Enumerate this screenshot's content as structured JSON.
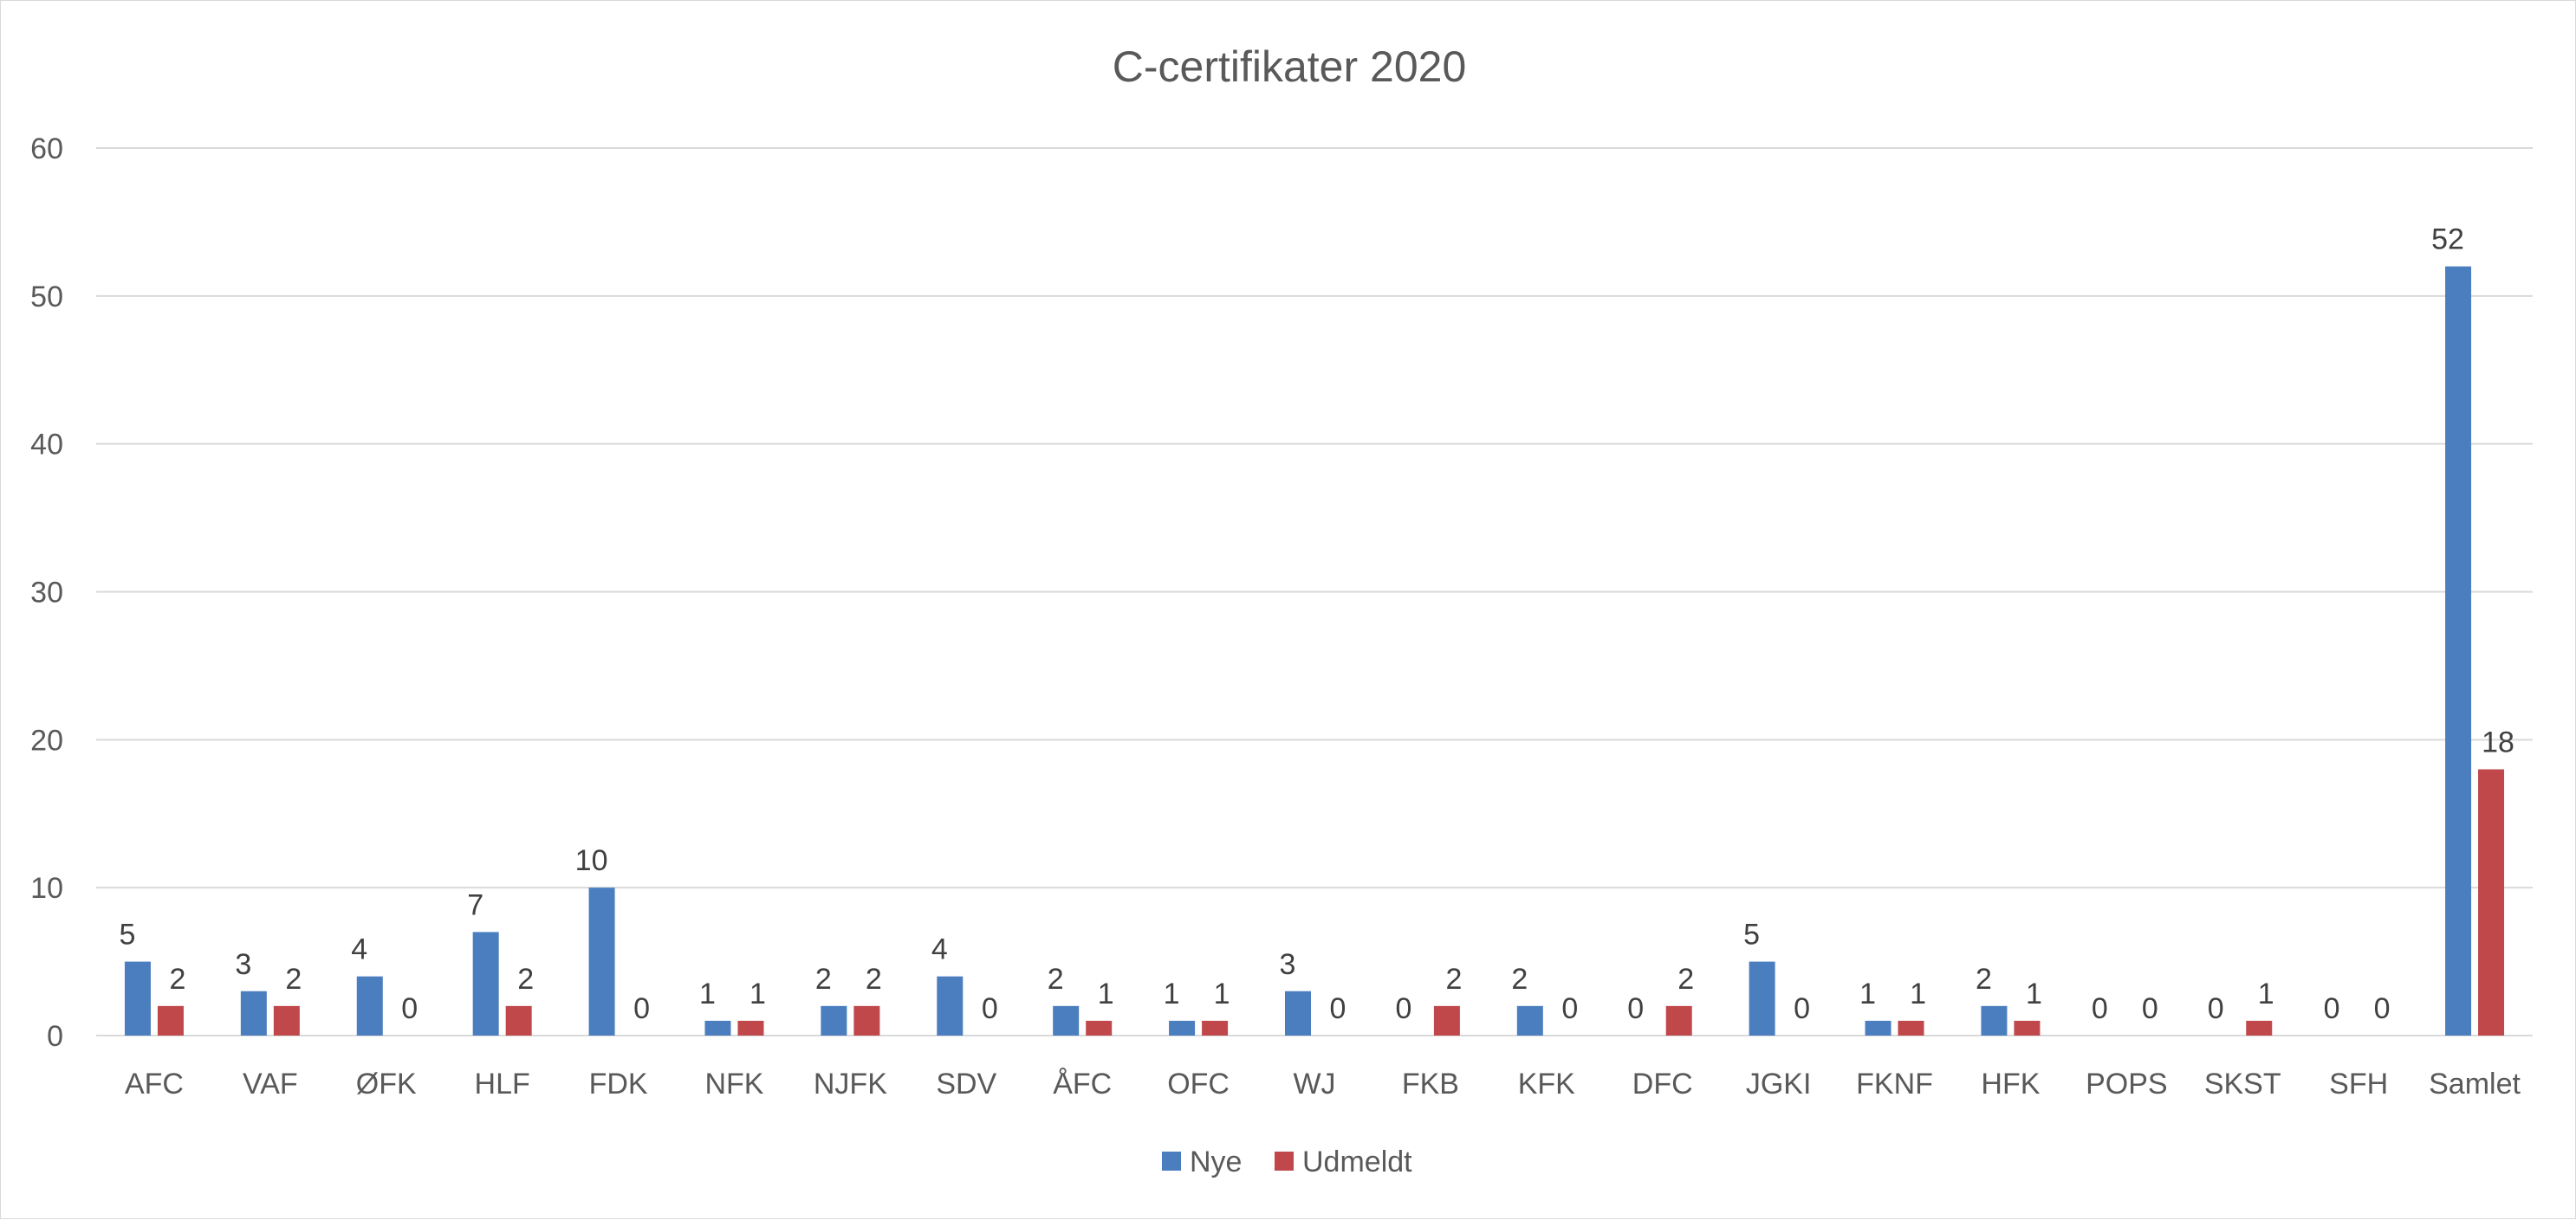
{
  "chart_data": {
    "type": "bar",
    "title": "C-certifikater 2020",
    "categories": [
      "AFC",
      "VAF",
      "ØFK",
      "HLF",
      "FDK",
      "NFK",
      "NJFK",
      "SDV",
      "ÅFC",
      "OFC",
      "WJ",
      "FKB",
      "KFK",
      "DFC",
      "JGKI",
      "FKNF",
      "HFK",
      "POPS",
      "SKST",
      "SFH",
      "Samlet"
    ],
    "series": [
      {
        "name": "Nye",
        "color": "#4a7ebf",
        "values": [
          5,
          3,
          4,
          7,
          10,
          1,
          2,
          4,
          2,
          1,
          3,
          0,
          2,
          0,
          5,
          1,
          2,
          0,
          0,
          0,
          52
        ]
      },
      {
        "name": "Udmeldt",
        "color": "#c0484a",
        "values": [
          2,
          2,
          0,
          2,
          0,
          1,
          2,
          0,
          1,
          1,
          0,
          2,
          0,
          2,
          0,
          1,
          1,
          0,
          1,
          0,
          18
        ]
      }
    ],
    "yticks": [
      "0",
      "10",
      "20",
      "30",
      "40",
      "50",
      "60"
    ],
    "ylim": [
      0,
      60
    ],
    "grid": true,
    "data_labels": true,
    "legend_position": "bottom"
  }
}
